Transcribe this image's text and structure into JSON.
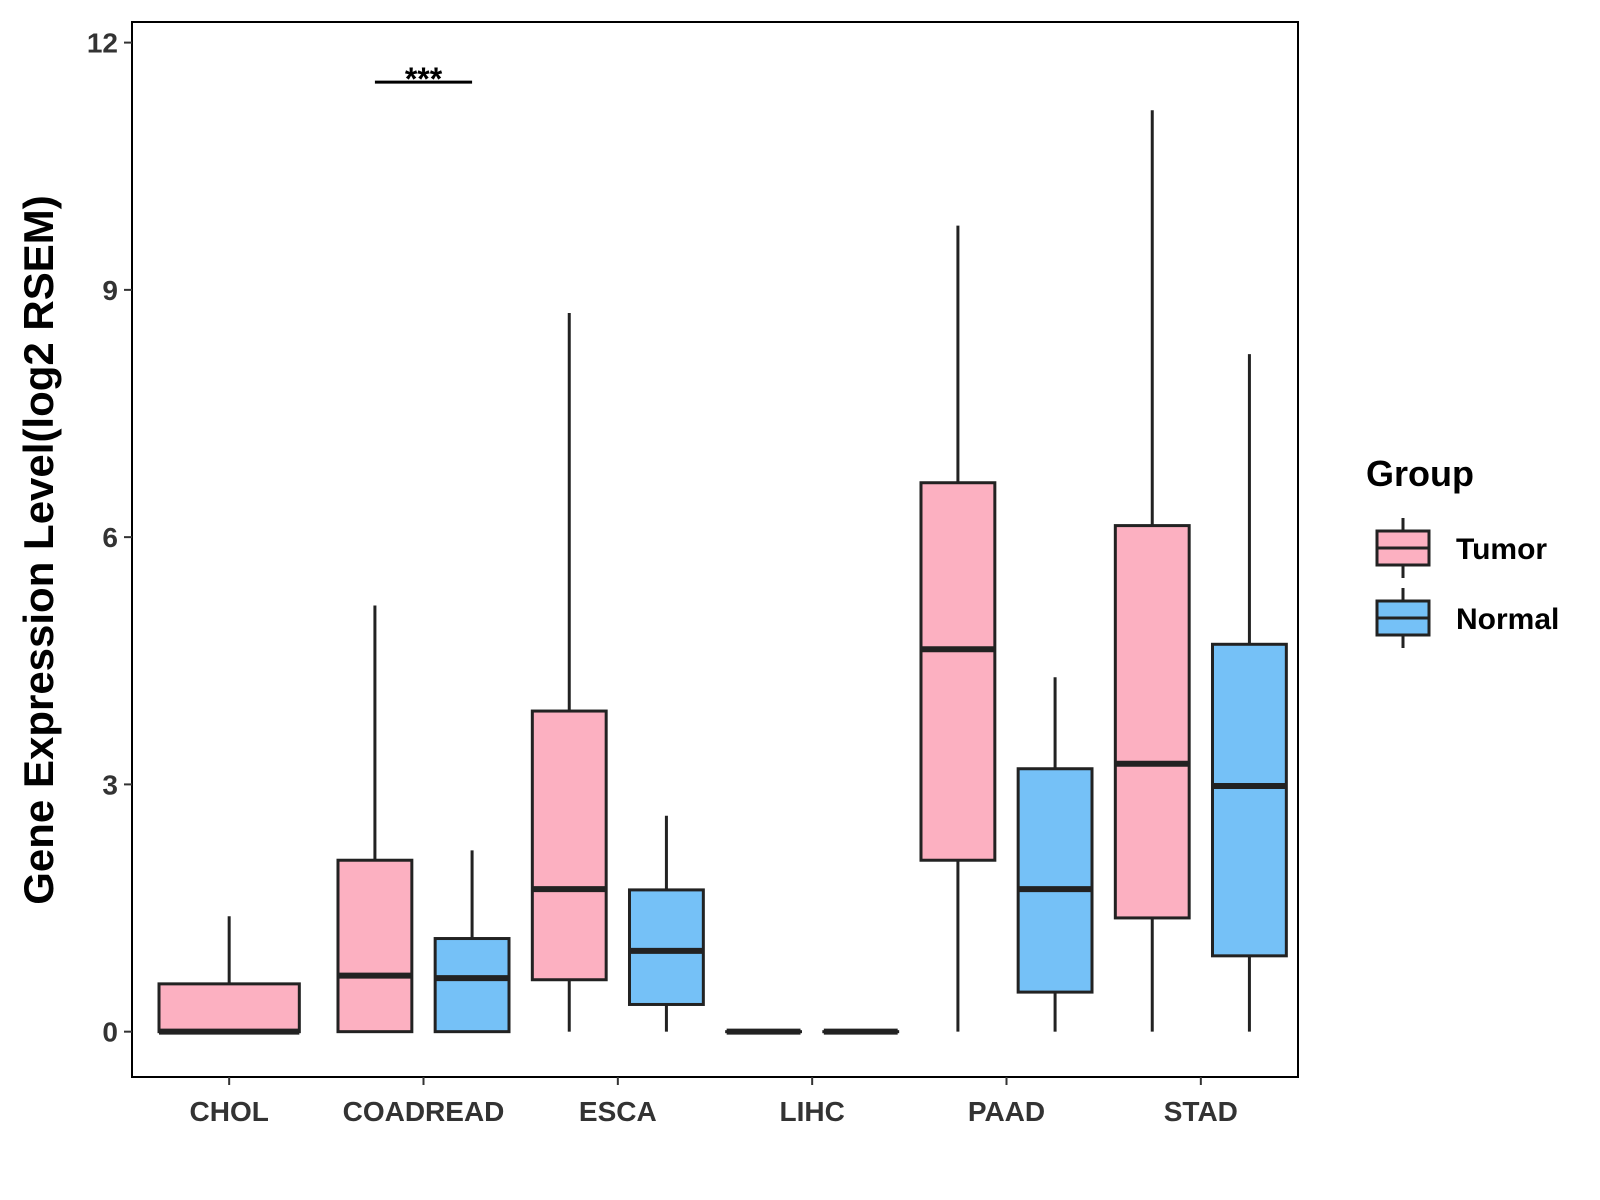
{
  "chart_data": {
    "type": "boxplot",
    "title": "",
    "xlabel": "",
    "ylabel": "Gene Expression Level(log2 RSEM)",
    "ylim": [
      -0.55,
      12.25
    ],
    "yticks": [
      0,
      3,
      6,
      9,
      12
    ],
    "grid": false,
    "legend_position": "right",
    "legend_title": "Group",
    "categories": [
      "CHOL",
      "COADREAD",
      "ESCA",
      "LIHC",
      "PAAD",
      "STAD"
    ],
    "series": [
      {
        "name": "Tumor",
        "color": "#FCB0C1",
        "boxes": [
          {
            "category": "CHOL",
            "min": 0,
            "q1": 0,
            "median": 0,
            "q3": 0.58,
            "max": 1.4
          },
          {
            "category": "COADREAD",
            "min": 0,
            "q1": 0,
            "median": 0.68,
            "q3": 2.08,
            "max": 5.17
          },
          {
            "category": "ESCA",
            "min": 0,
            "q1": 0.63,
            "median": 1.73,
            "q3": 3.89,
            "max": 8.72
          },
          {
            "category": "LIHC",
            "min": 0,
            "q1": 0,
            "median": 0,
            "q3": 0,
            "max": 0
          },
          {
            "category": "PAAD",
            "min": 0,
            "q1": 2.08,
            "median": 4.64,
            "q3": 6.66,
            "max": 9.78
          },
          {
            "category": "STAD",
            "min": 0,
            "q1": 1.38,
            "median": 3.25,
            "q3": 6.14,
            "max": 11.18
          }
        ]
      },
      {
        "name": "Normal",
        "color": "#75C1F7",
        "boxes": [
          {
            "category": "COADREAD",
            "min": 0,
            "q1": 0,
            "median": 0.65,
            "q3": 1.13,
            "max": 2.2
          },
          {
            "category": "ESCA",
            "min": 0,
            "q1": 0.33,
            "median": 0.98,
            "q3": 1.72,
            "max": 2.62
          },
          {
            "category": "LIHC",
            "min": 0,
            "q1": 0,
            "median": 0,
            "q3": 0,
            "max": 0
          },
          {
            "category": "PAAD",
            "min": 0,
            "q1": 0.48,
            "median": 1.73,
            "q3": 3.19,
            "max": 4.3
          },
          {
            "category": "STAD",
            "min": 0,
            "q1": 0.92,
            "median": 2.98,
            "q3": 4.7,
            "max": 8.22
          }
        ]
      }
    ],
    "annotations": [
      {
        "category": "COADREAD",
        "text": "***",
        "y": 11.52
      }
    ]
  }
}
